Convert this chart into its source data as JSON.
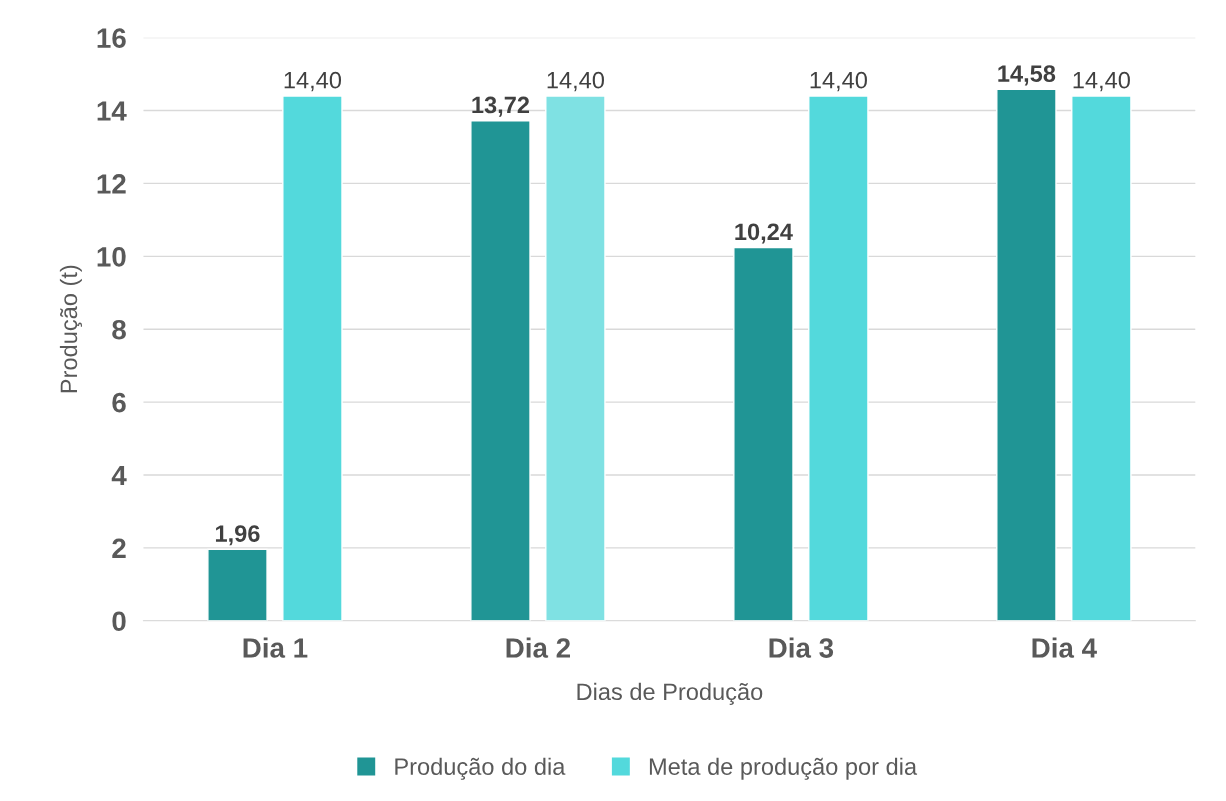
{
  "chart_data": {
    "type": "bar",
    "xlabel": "Dias de Produção",
    "ylabel": "Produção (t)",
    "categories": [
      "Dia 1",
      "Dia 2",
      "Dia 3",
      "Dia 4"
    ],
    "series": [
      {
        "name": "Produção do dia",
        "color": "#209595",
        "values": [
          1.96,
          13.72,
          10.24,
          14.58
        ],
        "value_labels": [
          "1,96",
          "13,72",
          "10,24",
          "14,58"
        ]
      },
      {
        "name": "Meta de produção por dia",
        "color": "#53d9dc",
        "colors": [
          "#53d9dc",
          "#7fe1e3",
          "#53d9dc",
          "#53d9dc"
        ],
        "values": [
          14.4,
          14.4,
          14.4,
          14.4
        ],
        "value_labels": [
          "14,40",
          "14,40",
          "14,40",
          "14,40"
        ]
      }
    ],
    "ylim": [
      0,
      16
    ],
    "yticks": [
      0,
      2,
      4,
      6,
      8,
      10,
      12,
      14,
      16
    ],
    "grid": "y",
    "legend": "bottom"
  }
}
